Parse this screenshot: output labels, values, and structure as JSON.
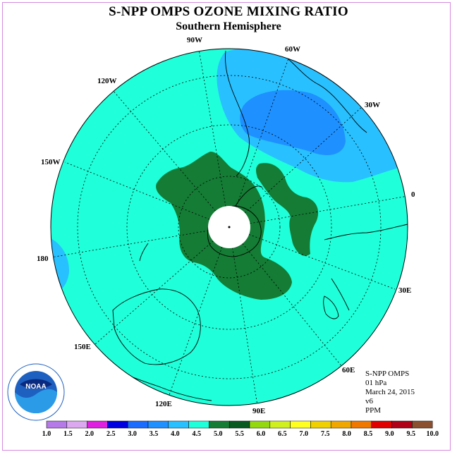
{
  "title": "S-NPP OMPS OZONE MIXING RATIO",
  "subtitle": "Southern Hemisphere",
  "longitude_labels": {
    "w90": "90W",
    "w60": "60W",
    "w30": "30W",
    "w120": "120W",
    "w150": "150W",
    "zero": "0",
    "d180": "180",
    "e30": "30E",
    "e60": "60E",
    "e90": "90E",
    "e120": "120E",
    "e150": "150E"
  },
  "info": {
    "instrument": "S-NPP OMPS",
    "level": "01 hPa",
    "date": "March 24, 2015",
    "version": "v6",
    "units": "PPM"
  },
  "logo": {
    "text": "NOAA",
    "icon": "noaa-logo"
  },
  "colorbar": {
    "ticks": [
      "1.0",
      "1.5",
      "2.0",
      "2.5",
      "3.0",
      "3.5",
      "4.0",
      "4.5",
      "5.0",
      "5.5",
      "6.0",
      "6.5",
      "7.0",
      "7.5",
      "8.0",
      "8.5",
      "9.0",
      "9.5",
      "10.0"
    ],
    "colors": [
      "#b57ae8",
      "#dca8f0",
      "#e020e0",
      "#0000e0",
      "#1a6cff",
      "#1e90ff",
      "#28c0ff",
      "#1fffd9",
      "#147c34",
      "#085a20",
      "#94d810",
      "#d0f020",
      "#ffff20",
      "#f0d000",
      "#f0a800",
      "#f07800",
      "#e00000",
      "#b00018",
      "#8a5030"
    ]
  },
  "map_colors": {
    "background": "#1fffd9",
    "light_blue": "#28c0ff",
    "mid_blue": "#1e90ff",
    "dark_green": "#147c34",
    "pole_hole": "#ffffff"
  }
}
